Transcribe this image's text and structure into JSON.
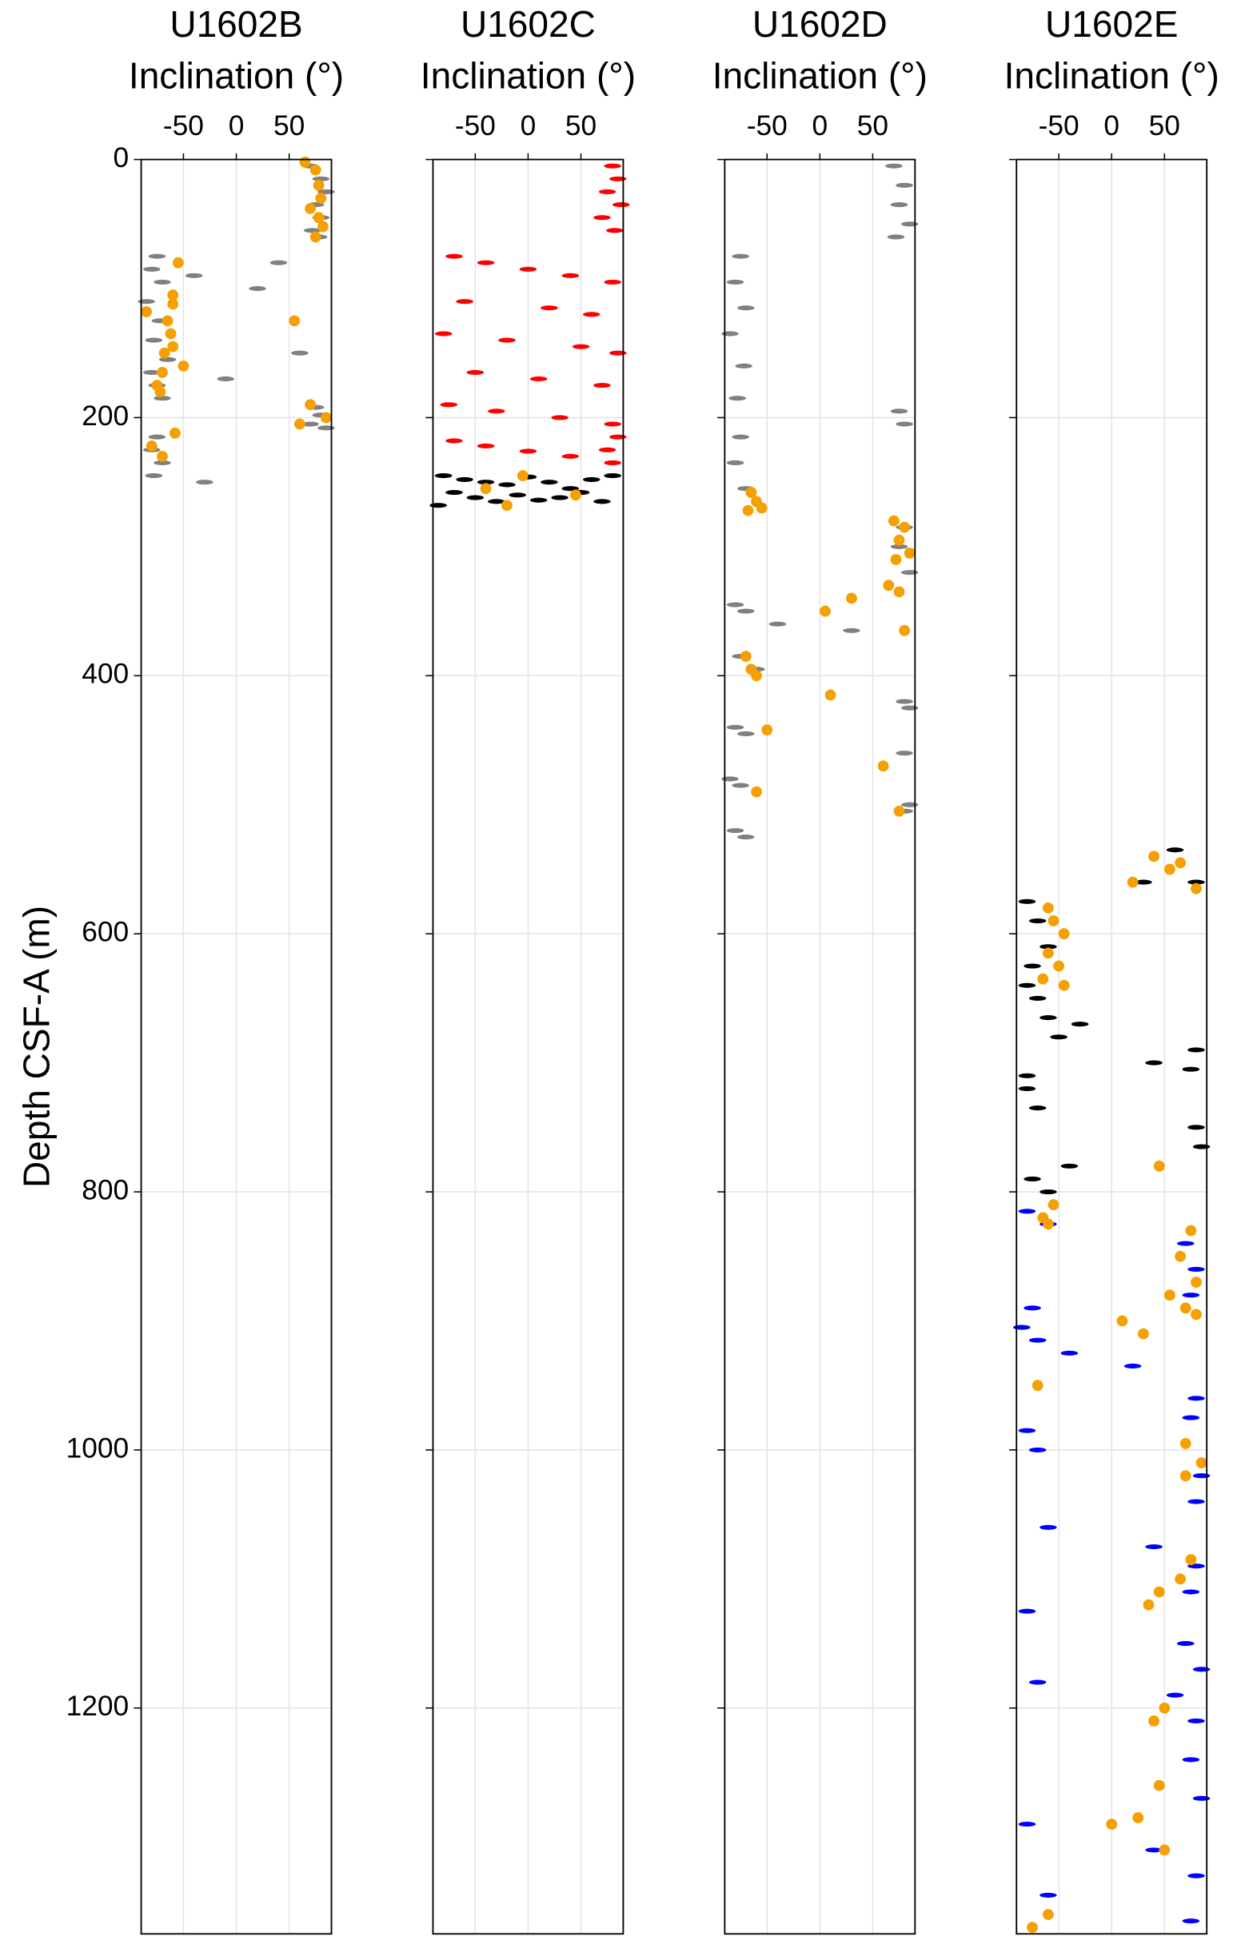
{
  "chart_data": [
    {
      "type": "scatter",
      "title": "U1602B",
      "xlabel": "Inclination (°)",
      "ylabel": "Depth CSF-A (m)",
      "xlim": [
        -90,
        90
      ],
      "xticks": [
        -50,
        0,
        50
      ],
      "ylim": [
        0,
        1375
      ],
      "yticks": [
        0,
        200,
        400,
        600,
        800,
        1000,
        1200
      ],
      "y_inverted": true,
      "grid": true,
      "series": [
        {
          "color": "#808080",
          "size": "small",
          "x": [
            70,
            80,
            85,
            75,
            80,
            72,
            78,
            -75,
            -80,
            -70,
            -85,
            -72,
            -78,
            -65,
            -80,
            -75,
            -70,
            -40,
            20,
            60,
            -10,
            75,
            80,
            70,
            85,
            -75,
            -80,
            -70,
            -78,
            -30,
            40
          ],
          "values": [
            5,
            15,
            25,
            35,
            45,
            55,
            60,
            75,
            85,
            95,
            110,
            125,
            140,
            155,
            165,
            175,
            185,
            90,
            100,
            150,
            170,
            192,
            198,
            205,
            208,
            215,
            225,
            235,
            245,
            250,
            80
          ]
        },
        {
          "color": "#f5a000",
          "size": "large",
          "x": [
            65,
            75,
            78,
            80,
            70,
            78,
            82,
            75,
            -55,
            -60,
            -60,
            -85,
            -65,
            55,
            -62,
            -60,
            -68,
            -50,
            -70,
            -75,
            -72,
            -58,
            -80,
            -70,
            70,
            85,
            60
          ],
          "values": [
            2,
            8,
            20,
            30,
            38,
            45,
            52,
            60,
            80,
            105,
            112,
            118,
            125,
            125,
            135,
            145,
            150,
            160,
            165,
            175,
            180,
            212,
            222,
            230,
            190,
            200,
            205
          ]
        }
      ]
    },
    {
      "type": "scatter",
      "title": "U1602C",
      "xlabel": "Inclination (°)",
      "xlim": [
        -90,
        90
      ],
      "xticks": [
        -50,
        0,
        50
      ],
      "ylim": [
        0,
        1375
      ],
      "y_inverted": true,
      "grid": true,
      "series": [
        {
          "color": "#ff0000",
          "size": "small",
          "x": [
            80,
            85,
            75,
            88,
            70,
            82,
            -70,
            -40,
            0,
            40,
            80,
            -60,
            20,
            60,
            -80,
            -20,
            50,
            85,
            -50,
            10,
            70,
            -75,
            -30,
            30,
            80,
            85,
            75,
            -70,
            -40,
            0,
            40,
            80
          ],
          "values": [
            5,
            15,
            25,
            35,
            45,
            55,
            75,
            80,
            85,
            90,
            95,
            110,
            115,
            120,
            135,
            140,
            145,
            150,
            165,
            170,
            175,
            190,
            195,
            200,
            205,
            215,
            225,
            218,
            222,
            226,
            230,
            235
          ]
        },
        {
          "color": "#000000",
          "size": "small",
          "x": [
            -80,
            -60,
            -40,
            -20,
            0,
            20,
            40,
            60,
            80,
            -70,
            -50,
            -30,
            -10,
            10,
            30,
            50,
            70,
            -85
          ],
          "values": [
            245,
            248,
            250,
            252,
            246,
            250,
            255,
            248,
            245,
            258,
            262,
            265,
            260,
            264,
            262,
            258,
            265,
            268
          ]
        },
        {
          "color": "#f5a000",
          "size": "large",
          "x": [
            -40,
            -5,
            -20,
            45
          ],
          "values": [
            255,
            245,
            268,
            260
          ]
        }
      ]
    },
    {
      "type": "scatter",
      "title": "U1602D",
      "xlabel": "Inclination (°)",
      "xlim": [
        -90,
        90
      ],
      "xticks": [
        -50,
        0,
        50
      ],
      "ylim": [
        0,
        1375
      ],
      "y_inverted": true,
      "grid": true,
      "series": [
        {
          "color": "#808080",
          "size": "small",
          "x": [
            70,
            80,
            75,
            85,
            72,
            -75,
            -80,
            -70,
            -85,
            -72,
            -78,
            75,
            80,
            -75,
            -80,
            -70,
            80,
            75,
            85,
            -80,
            -70,
            -40,
            30,
            -75,
            -60,
            80,
            85,
            -80,
            -70,
            80,
            -85,
            -75,
            85,
            80,
            -80,
            -70
          ],
          "values": [
            5,
            20,
            35,
            50,
            60,
            75,
            95,
            115,
            135,
            160,
            185,
            195,
            205,
            215,
            235,
            255,
            285,
            300,
            320,
            345,
            350,
            360,
            365,
            385,
            395,
            420,
            425,
            440,
            445,
            460,
            480,
            485,
            500,
            505,
            520,
            525
          ]
        },
        {
          "color": "#f5a000",
          "size": "large",
          "x": [
            -65,
            -60,
            -68,
            -55,
            70,
            80,
            75,
            85,
            72,
            65,
            75,
            5,
            30,
            80,
            -70,
            -65,
            -60,
            10,
            -50,
            60,
            -60,
            75
          ],
          "values": [
            258,
            265,
            272,
            270,
            280,
            285,
            295,
            305,
            310,
            330,
            335,
            350,
            340,
            365,
            385,
            395,
            400,
            415,
            442,
            470,
            490,
            505
          ]
        }
      ]
    },
    {
      "type": "scatter",
      "title": "U1602E",
      "xlabel": "Inclination (°)",
      "xlim": [
        -90,
        90
      ],
      "xticks": [
        -50,
        0,
        50
      ],
      "ylim": [
        0,
        1375
      ],
      "y_inverted": true,
      "grid": true,
      "series": [
        {
          "color": "#000000",
          "size": "small",
          "x": [
            60,
            80,
            -80,
            -70,
            -60,
            -75,
            -80,
            -70,
            -60,
            -50,
            -30,
            30,
            -80,
            80,
            75,
            -80,
            -70,
            80,
            85,
            -75,
            -60,
            -40,
            40
          ],
          "values": [
            535,
            560,
            575,
            590,
            610,
            625,
            640,
            650,
            665,
            680,
            670,
            560,
            710,
            690,
            705,
            720,
            735,
            750,
            765,
            790,
            800,
            780,
            700
          ]
        },
        {
          "color": "#0000ff",
          "size": "small",
          "x": [
            -80,
            -60,
            70,
            80,
            75,
            -75,
            -85,
            -70,
            -40,
            20,
            80,
            75,
            -80,
            -70,
            85,
            80,
            -60,
            40,
            80,
            75,
            -80,
            70,
            85,
            -70,
            60,
            80,
            75,
            85,
            -80,
            40,
            80,
            -60,
            75
          ],
          "values": [
            815,
            825,
            840,
            860,
            880,
            890,
            905,
            915,
            925,
            935,
            960,
            975,
            985,
            1000,
            1020,
            1040,
            1060,
            1075,
            1090,
            1110,
            1125,
            1150,
            1170,
            1180,
            1190,
            1210,
            1240,
            1270,
            1290,
            1310,
            1330,
            1345,
            1365
          ]
        },
        {
          "color": "#f5a000",
          "size": "large",
          "x": [
            40,
            65,
            55,
            80,
            20,
            -60,
            -55,
            -45,
            -60,
            -50,
            -65,
            -45,
            45,
            -55,
            -65,
            -60,
            75,
            65,
            80,
            55,
            70,
            80,
            10,
            30,
            -70,
            70,
            85,
            70,
            75,
            65,
            45,
            35,
            50,
            40,
            45,
            25,
            0,
            50,
            -60,
            -75
          ],
          "values": [
            540,
            545,
            550,
            565,
            560,
            580,
            590,
            600,
            615,
            625,
            635,
            640,
            780,
            810,
            820,
            825,
            830,
            850,
            870,
            880,
            890,
            895,
            900,
            910,
            950,
            995,
            1010,
            1020,
            1085,
            1100,
            1110,
            1120,
            1200,
            1210,
            1260,
            1285,
            1290,
            1310,
            1360,
            1370
          ]
        }
      ]
    }
  ]
}
